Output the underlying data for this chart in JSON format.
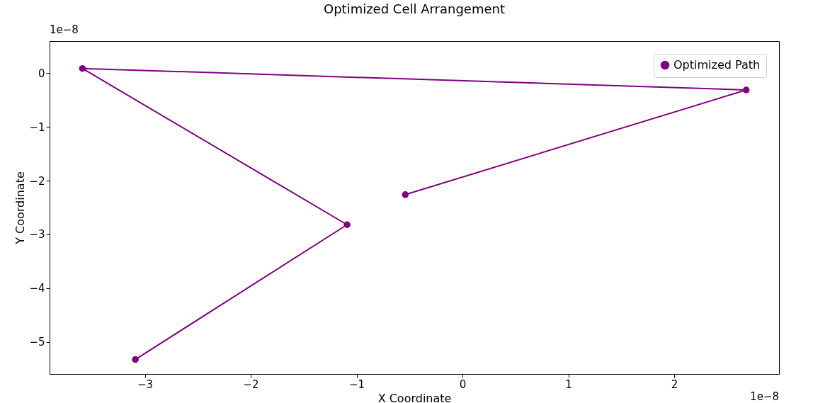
{
  "chart_data": {
    "type": "line",
    "title": "Optimized Cell Arrangement",
    "xlabel": "X Coordinate",
    "ylabel": "Y Coordinate",
    "annotations": [
      "1e−8",
      "1e−8"
    ],
    "series": [
      {
        "name": "Optimized Path",
        "color": "#800080",
        "x": [
          -0.54,
          2.68,
          -3.59,
          -1.09,
          -3.09
        ],
        "values": [
          -2.26,
          -0.31,
          0.09,
          -2.82,
          -5.33
        ]
      }
    ],
    "xlim": [
      -3.9,
      2.99
    ],
    "ylim": [
      -5.6,
      0.6
    ],
    "xticks": [
      -3,
      -2,
      -1,
      0,
      1,
      2
    ],
    "yticks": [
      -5,
      -4,
      -3,
      -2,
      -1,
      0
    ],
    "grid": false,
    "legend": "top right",
    "marker": "circle",
    "line_style": "solid"
  }
}
